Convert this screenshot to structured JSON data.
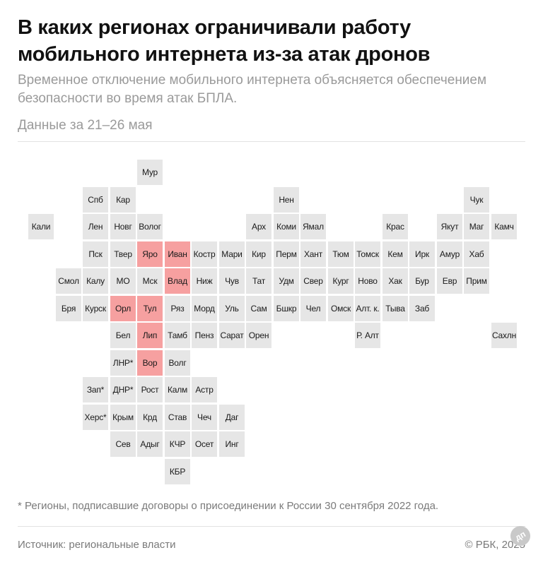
{
  "header": {
    "title": "В каких регионах ограничивали работу мобильного интернета из-за атак дронов",
    "subtitle": "Временное отключение мобильного интернета объясняется обеспечением безопасности во время атак БПЛА.",
    "period": "Данные за 21–26 мая"
  },
  "footer": {
    "note": "* Регионы, подписавшие договоры о присоединении к России 30 сентября 2022 года.",
    "source": "Источник: региональные власти",
    "credit": "© РБК, 2025",
    "logo_text": "дп"
  },
  "colors": {
    "affected": "#f6a0a0",
    "default": "#e6e6e6"
  },
  "chart_data": {
    "type": "table",
    "title": "В каких регионах ограничивали работу мобильного интернета из-за атак дронов",
    "subtitle": "Временное отключение мобильного интернета объясняется обеспечением безопасности во время атак БПЛА.",
    "legend": "",
    "regions": [
      {
        "label": "Мур",
        "col": 5,
        "row": 0,
        "restricted": false
      },
      {
        "label": "Спб",
        "col": 3,
        "row": 1,
        "restricted": false
      },
      {
        "label": "Кар",
        "col": 4,
        "row": 1,
        "restricted": false
      },
      {
        "label": "Нен",
        "col": 10,
        "row": 1,
        "restricted": false
      },
      {
        "label": "Чук",
        "col": 17,
        "row": 1,
        "restricted": false
      },
      {
        "label": "Кали",
        "col": 1,
        "row": 2,
        "restricted": false
      },
      {
        "label": "Лен",
        "col": 3,
        "row": 2,
        "restricted": false
      },
      {
        "label": "Новг",
        "col": 4,
        "row": 2,
        "restricted": false
      },
      {
        "label": "Волог",
        "col": 5,
        "row": 2,
        "restricted": false
      },
      {
        "label": "Арх",
        "col": 9,
        "row": 2,
        "restricted": false
      },
      {
        "label": "Коми",
        "col": 10,
        "row": 2,
        "restricted": false
      },
      {
        "label": "Ямал",
        "col": 11,
        "row": 2,
        "restricted": false
      },
      {
        "label": "Крас",
        "col": 14,
        "row": 2,
        "restricted": false
      },
      {
        "label": "Якут",
        "col": 16,
        "row": 2,
        "restricted": false
      },
      {
        "label": "Маг",
        "col": 17,
        "row": 2,
        "restricted": false
      },
      {
        "label": "Камч",
        "col": 18,
        "row": 2,
        "restricted": false
      },
      {
        "label": "Пск",
        "col": 3,
        "row": 3,
        "restricted": false
      },
      {
        "label": "Твер",
        "col": 4,
        "row": 3,
        "restricted": false
      },
      {
        "label": "Яро",
        "col": 5,
        "row": 3,
        "restricted": true
      },
      {
        "label": "Иван",
        "col": 6,
        "row": 3,
        "restricted": true
      },
      {
        "label": "Костр",
        "col": 7,
        "row": 3,
        "restricted": false
      },
      {
        "label": "Мари",
        "col": 8,
        "row": 3,
        "restricted": false
      },
      {
        "label": "Кир",
        "col": 9,
        "row": 3,
        "restricted": false
      },
      {
        "label": "Перм",
        "col": 10,
        "row": 3,
        "restricted": false
      },
      {
        "label": "Хант",
        "col": 11,
        "row": 3,
        "restricted": false
      },
      {
        "label": "Тюм",
        "col": 12,
        "row": 3,
        "restricted": false
      },
      {
        "label": "Томск",
        "col": 13,
        "row": 3,
        "restricted": false
      },
      {
        "label": "Кем",
        "col": 14,
        "row": 3,
        "restricted": false
      },
      {
        "label": "Ирк",
        "col": 15,
        "row": 3,
        "restricted": false
      },
      {
        "label": "Амур",
        "col": 16,
        "row": 3,
        "restricted": false
      },
      {
        "label": "Хаб",
        "col": 17,
        "row": 3,
        "restricted": false
      },
      {
        "label": "Смол",
        "col": 2,
        "row": 4,
        "restricted": false
      },
      {
        "label": "Калу",
        "col": 3,
        "row": 4,
        "restricted": false
      },
      {
        "label": "МО",
        "col": 4,
        "row": 4,
        "restricted": false
      },
      {
        "label": "Мск",
        "col": 5,
        "row": 4,
        "restricted": false
      },
      {
        "label": "Влад",
        "col": 6,
        "row": 4,
        "restricted": true
      },
      {
        "label": "Ниж",
        "col": 7,
        "row": 4,
        "restricted": false
      },
      {
        "label": "Чув",
        "col": 8,
        "row": 4,
        "restricted": false
      },
      {
        "label": "Тат",
        "col": 9,
        "row": 4,
        "restricted": false
      },
      {
        "label": "Удм",
        "col": 10,
        "row": 4,
        "restricted": false
      },
      {
        "label": "Свер",
        "col": 11,
        "row": 4,
        "restricted": false
      },
      {
        "label": "Кург",
        "col": 12,
        "row": 4,
        "restricted": false
      },
      {
        "label": "Ново",
        "col": 13,
        "row": 4,
        "restricted": false
      },
      {
        "label": "Хак",
        "col": 14,
        "row": 4,
        "restricted": false
      },
      {
        "label": "Бур",
        "col": 15,
        "row": 4,
        "restricted": false
      },
      {
        "label": "Евр",
        "col": 16,
        "row": 4,
        "restricted": false
      },
      {
        "label": "Прим",
        "col": 17,
        "row": 4,
        "restricted": false
      },
      {
        "label": "Бря",
        "col": 2,
        "row": 5,
        "restricted": false
      },
      {
        "label": "Курск",
        "col": 3,
        "row": 5,
        "restricted": false
      },
      {
        "label": "Орл",
        "col": 4,
        "row": 5,
        "restricted": true
      },
      {
        "label": "Тул",
        "col": 5,
        "row": 5,
        "restricted": true
      },
      {
        "label": "Ряз",
        "col": 6,
        "row": 5,
        "restricted": false
      },
      {
        "label": "Морд",
        "col": 7,
        "row": 5,
        "restricted": false
      },
      {
        "label": "Уль",
        "col": 8,
        "row": 5,
        "restricted": false
      },
      {
        "label": "Сам",
        "col": 9,
        "row": 5,
        "restricted": false
      },
      {
        "label": "Бшкр",
        "col": 10,
        "row": 5,
        "restricted": false
      },
      {
        "label": "Чел",
        "col": 11,
        "row": 5,
        "restricted": false
      },
      {
        "label": "Омск",
        "col": 12,
        "row": 5,
        "restricted": false
      },
      {
        "label": "Алт. к.",
        "col": 13,
        "row": 5,
        "restricted": false
      },
      {
        "label": "Тыва",
        "col": 14,
        "row": 5,
        "restricted": false
      },
      {
        "label": "Заб",
        "col": 15,
        "row": 5,
        "restricted": false
      },
      {
        "label": "Бел",
        "col": 4,
        "row": 6,
        "restricted": false
      },
      {
        "label": "Лип",
        "col": 5,
        "row": 6,
        "restricted": true
      },
      {
        "label": "Тамб",
        "col": 6,
        "row": 6,
        "restricted": false
      },
      {
        "label": "Пенз",
        "col": 7,
        "row": 6,
        "restricted": false
      },
      {
        "label": "Сарат",
        "col": 8,
        "row": 6,
        "restricted": false
      },
      {
        "label": "Орен",
        "col": 9,
        "row": 6,
        "restricted": false
      },
      {
        "label": "Р. Алт",
        "col": 13,
        "row": 6,
        "restricted": false
      },
      {
        "label": "Сахлн",
        "col": 18,
        "row": 6,
        "restricted": false
      },
      {
        "label": "ЛНР*",
        "col": 4,
        "row": 7,
        "restricted": false
      },
      {
        "label": "Вор",
        "col": 5,
        "row": 7,
        "restricted": true
      },
      {
        "label": "Волг",
        "col": 6,
        "row": 7,
        "restricted": false
      },
      {
        "label": "Зап*",
        "col": 3,
        "row": 8,
        "restricted": false
      },
      {
        "label": "ДНР*",
        "col": 4,
        "row": 8,
        "restricted": false
      },
      {
        "label": "Рост",
        "col": 5,
        "row": 8,
        "restricted": false
      },
      {
        "label": "Калм",
        "col": 6,
        "row": 8,
        "restricted": false
      },
      {
        "label": "Астр",
        "col": 7,
        "row": 8,
        "restricted": false
      },
      {
        "label": "Херс*",
        "col": 3,
        "row": 9,
        "restricted": false
      },
      {
        "label": "Крым",
        "col": 4,
        "row": 9,
        "restricted": false
      },
      {
        "label": "Крд",
        "col": 5,
        "row": 9,
        "restricted": false
      },
      {
        "label": "Став",
        "col": 6,
        "row": 9,
        "restricted": false
      },
      {
        "label": "Чеч",
        "col": 7,
        "row": 9,
        "restricted": false
      },
      {
        "label": "Даг",
        "col": 8,
        "row": 9,
        "restricted": false
      },
      {
        "label": "Сев",
        "col": 4,
        "row": 10,
        "restricted": false
      },
      {
        "label": "Адыг",
        "col": 5,
        "row": 10,
        "restricted": false
      },
      {
        "label": "КЧР",
        "col": 6,
        "row": 10,
        "restricted": false
      },
      {
        "label": "Осет",
        "col": 7,
        "row": 10,
        "restricted": false
      },
      {
        "label": "Инг",
        "col": 8,
        "row": 10,
        "restricted": false
      },
      {
        "label": "КБР",
        "col": 6,
        "row": 11,
        "restricted": false
      }
    ]
  }
}
